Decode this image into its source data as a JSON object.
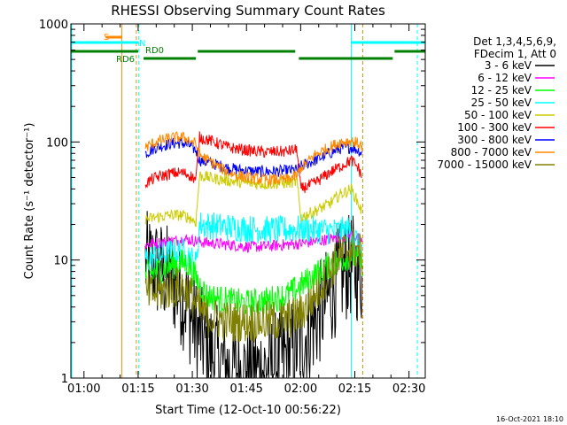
{
  "chart_data": {
    "type": "line",
    "title": "RHESSI Observing Summary Count Rates",
    "xlabel": "Start Time (12-Oct-10 00:56:22)",
    "ylabel": "Count Rate (s⁻¹ detector⁻¹)",
    "yscale": "log",
    "ylim": [
      1,
      1000
    ],
    "xlim": [
      56.37,
      154.5
    ],
    "x_units": "minutes after 00:00 UT",
    "x_tick_labels": [
      "01:00",
      "01:15",
      "01:30",
      "01:45",
      "02:00",
      "02:15",
      "02:30"
    ],
    "x_tick_values": [
      60,
      75,
      90,
      105,
      120,
      135,
      150
    ],
    "y_tick_labels": [
      "1",
      "10",
      "100",
      "1000"
    ],
    "y_tick_values": [
      1,
      10,
      100,
      1000
    ],
    "legend": {
      "placement": "right-outside",
      "header_lines": [
        "Det 1,3,4,5,6,9,",
        "FDecim 1, Att 0"
      ]
    },
    "series": [
      {
        "name": "3 - 6 keV",
        "color": "#000000",
        "points": [
          [
            77,
            9.5
          ],
          [
            80,
            8.5
          ],
          [
            84,
            7
          ],
          [
            88,
            4.5
          ],
          [
            91,
            2.6
          ],
          [
            94,
            1.8
          ],
          [
            100,
            1.2
          ],
          [
            105,
            1.1
          ],
          [
            110,
            1.2
          ],
          [
            116,
            1.5
          ],
          [
            120,
            2
          ],
          [
            124,
            3
          ],
          [
            128,
            5
          ],
          [
            131,
            7.5
          ],
          [
            134,
            9
          ],
          [
            136,
            8
          ],
          [
            137,
            7.5
          ]
        ]
      },
      {
        "name": "6 - 12 keV",
        "color": "#ff00ff",
        "points": [
          [
            77,
            13.5
          ],
          [
            82,
            14.2
          ],
          [
            88,
            15
          ],
          [
            91,
            14.5
          ],
          [
            94,
            14
          ],
          [
            100,
            13.5
          ],
          [
            105,
            13
          ],
          [
            110,
            13
          ],
          [
            116,
            13.5
          ],
          [
            120,
            13.8
          ],
          [
            125,
            14.5
          ],
          [
            130,
            15.5
          ],
          [
            134,
            16.5
          ],
          [
            136,
            15
          ],
          [
            137,
            14.5
          ]
        ]
      },
      {
        "name": "12 - 25 keV",
        "color": "#00ff00",
        "points": [
          [
            77,
            7.5
          ],
          [
            80,
            8
          ],
          [
            84,
            9
          ],
          [
            87,
            9.5
          ],
          [
            89,
            9.2
          ],
          [
            91,
            7
          ],
          [
            94,
            5
          ],
          [
            100,
            4.5
          ],
          [
            105,
            4.3
          ],
          [
            110,
            4.5
          ],
          [
            116,
            5
          ],
          [
            120,
            6
          ],
          [
            124,
            7.5
          ],
          [
            128,
            9
          ],
          [
            131,
            10
          ],
          [
            134,
            11
          ],
          [
            136,
            10
          ],
          [
            137,
            9.5
          ]
        ]
      },
      {
        "name": "25 - 50 keV",
        "color": "#00ffff",
        "points": [
          [
            77,
            10
          ],
          [
            80,
            10.8
          ],
          [
            84,
            11.5
          ],
          [
            87,
            11.8
          ],
          [
            89,
            11
          ],
          [
            91,
            9
          ],
          [
            92,
            20
          ],
          [
            96,
            19.5
          ],
          [
            100,
            19
          ],
          [
            105,
            18.5
          ],
          [
            110,
            18
          ],
          [
            116,
            18
          ],
          [
            120,
            18.5
          ],
          [
            125,
            18
          ],
          [
            130,
            17.5
          ],
          [
            134,
            18
          ],
          [
            135,
            16
          ],
          [
            136,
            13
          ],
          [
            137,
            12
          ]
        ]
      },
      {
        "name": "50 - 100 keV",
        "color": "#cccc00",
        "points": [
          [
            77,
            22
          ],
          [
            80,
            23
          ],
          [
            84,
            24
          ],
          [
            87,
            24
          ],
          [
            89,
            23
          ],
          [
            91,
            21
          ],
          [
            92,
            52
          ],
          [
            96,
            49
          ],
          [
            100,
            47
          ],
          [
            105,
            45
          ],
          [
            110,
            44
          ],
          [
            116,
            45
          ],
          [
            119,
            46
          ],
          [
            120,
            23
          ],
          [
            124,
            26
          ],
          [
            128,
            30
          ],
          [
            131,
            36
          ],
          [
            134,
            40
          ],
          [
            136,
            30
          ],
          [
            137,
            25
          ]
        ]
      },
      {
        "name": "100 - 300 keV",
        "color": "#ff0000",
        "points": [
          [
            77,
            45
          ],
          [
            80,
            50
          ],
          [
            84,
            54
          ],
          [
            87,
            55
          ],
          [
            89,
            53
          ],
          [
            91,
            48
          ],
          [
            92,
            110
          ],
          [
            96,
            100
          ],
          [
            100,
            90
          ],
          [
            105,
            85
          ],
          [
            110,
            82
          ],
          [
            116,
            83
          ],
          [
            119,
            86
          ],
          [
            120,
            40
          ],
          [
            124,
            45
          ],
          [
            128,
            55
          ],
          [
            131,
            62
          ],
          [
            134,
            70
          ],
          [
            136,
            60
          ],
          [
            137,
            50
          ]
        ]
      },
      {
        "name": "300 - 800 keV",
        "color": "#0000ff",
        "points": [
          [
            77,
            80
          ],
          [
            80,
            90
          ],
          [
            84,
            97
          ],
          [
            87,
            98
          ],
          [
            89,
            94
          ],
          [
            91,
            85
          ],
          [
            92,
            70
          ],
          [
            96,
            65
          ],
          [
            100,
            60
          ],
          [
            105,
            57
          ],
          [
            110,
            56
          ],
          [
            116,
            57
          ],
          [
            119,
            58
          ],
          [
            120,
            62
          ],
          [
            124,
            70
          ],
          [
            128,
            80
          ],
          [
            131,
            88
          ],
          [
            134,
            90
          ],
          [
            136,
            85
          ],
          [
            137,
            80
          ]
        ]
      },
      {
        "name": "800 - 7000 keV",
        "color": "#ff8800",
        "points": [
          [
            77,
            90
          ],
          [
            80,
            100
          ],
          [
            84,
            108
          ],
          [
            87,
            110
          ],
          [
            89,
            105
          ],
          [
            91,
            96
          ],
          [
            92,
            78
          ],
          [
            96,
            65
          ],
          [
            100,
            55
          ],
          [
            105,
            50
          ],
          [
            110,
            48
          ],
          [
            116,
            48
          ],
          [
            119,
            52
          ],
          [
            120,
            60
          ],
          [
            124,
            78
          ],
          [
            128,
            90
          ],
          [
            131,
            100
          ],
          [
            134,
            102
          ],
          [
            136,
            97
          ],
          [
            137,
            92
          ]
        ]
      },
      {
        "name": "7000 - 15000 keV",
        "color": "#808000",
        "points": [
          [
            77,
            5
          ],
          [
            80,
            5.3
          ],
          [
            84,
            5.7
          ],
          [
            87,
            6
          ],
          [
            89,
            5.4
          ],
          [
            91,
            4.2
          ],
          [
            94,
            3.3
          ],
          [
            100,
            3
          ],
          [
            105,
            3
          ],
          [
            110,
            3
          ],
          [
            116,
            3.1
          ],
          [
            120,
            3.5
          ],
          [
            124,
            5
          ],
          [
            128,
            8
          ],
          [
            131,
            11
          ],
          [
            134,
            13
          ],
          [
            136,
            12
          ],
          [
            137,
            11
          ]
        ]
      }
    ],
    "annotations": {
      "flag_labels": [
        "S",
        "N",
        "RD0",
        "RD6"
      ],
      "saa": {
        "color": "#ff8800",
        "x_range": [
          66,
          70.5
        ],
        "y": 780
      },
      "night": {
        "color": "#00ffff",
        "segments": [
          [
            56.37,
            75.2
          ],
          [
            134,
            154.5
          ]
        ],
        "y": 680
      },
      "rd0": {
        "color": "#008000",
        "segments": [
          [
            56.37,
            75
          ],
          [
            76.5,
            91
          ],
          [
            91.5,
            118.5
          ],
          [
            119.5,
            145.5
          ],
          [
            146,
            154.5
          ]
        ]
      },
      "vlines": [
        {
          "x": 70.5,
          "color": "#ff8800",
          "style": "solid"
        },
        {
          "x": 74.5,
          "color": "#ff8800",
          "style": "dashed"
        },
        {
          "x": 75.2,
          "color": "#00ffff",
          "style": "dashed"
        },
        {
          "x": 134,
          "color": "#00ffff",
          "style": "solid"
        },
        {
          "x": 137.2,
          "color": "#ff8800",
          "style": "dashed"
        },
        {
          "x": 152.3,
          "color": "#00ffff",
          "style": "dashed"
        },
        {
          "x": 56.6,
          "color": "#00ffff",
          "style": "solid"
        }
      ]
    }
  },
  "footer": {
    "timestamp": "16-Oct-2021 18:10"
  }
}
